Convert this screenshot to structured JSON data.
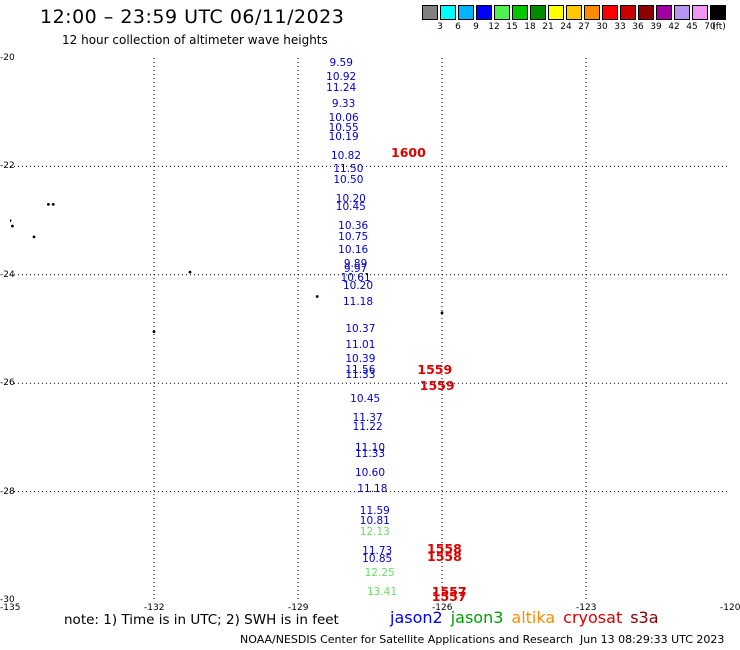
{
  "title": "12:00 – 23:59 UTC 06/11/2023",
  "subtitle": "12 hour collection of altimeter wave heights",
  "legend": {
    "colors": [
      "#808080",
      "#00ffff",
      "#00b4ff",
      "#0000ff",
      "#50f050",
      "#00c800",
      "#008c00",
      "#ffff00",
      "#ffc800",
      "#ff8c00",
      "#ff0000",
      "#c80000",
      "#8c0000",
      "#a000a0",
      "#b496f0",
      "#f096f0",
      "#000000"
    ],
    "labels": [
      "3",
      "6",
      "9",
      "12",
      "15",
      "18",
      "21",
      "24",
      "27",
      "30",
      "33",
      "36",
      "39",
      "42",
      "45",
      "70",
      "(ft)"
    ]
  },
  "axes": {
    "x_ticks": [
      {
        "v": -135,
        "t": "-135"
      },
      {
        "v": -132,
        "t": "-132"
      },
      {
        "v": -129,
        "t": "-129"
      },
      {
        "v": -126,
        "t": "-126"
      },
      {
        "v": -123,
        "t": "-123"
      },
      {
        "v": -120,
        "t": "-120"
      }
    ],
    "y_ticks": [
      {
        "v": -20,
        "t": "-20"
      },
      {
        "v": -22,
        "t": "-22"
      },
      {
        "v": -24,
        "t": "-24"
      },
      {
        "v": -26,
        "t": "-26"
      },
      {
        "v": -28,
        "t": "-28"
      },
      {
        "v": -30,
        "t": "-30"
      }
    ],
    "lon_range": [
      -135,
      -120
    ],
    "lat_range": [
      -20,
      -30
    ]
  },
  "observations": [
    {
      "t": "9.59",
      "lon": -128.1,
      "lat": -20.1,
      "c": "#0000cc"
    },
    {
      "t": "10.92",
      "lon": -128.1,
      "lat": -20.35,
      "c": "#0000cc"
    },
    {
      "t": "11.24",
      "lon": -128.1,
      "lat": -20.55,
      "c": "#0000cc"
    },
    {
      "t": "9.33",
      "lon": -128.05,
      "lat": -20.85,
      "c": "#0000cc"
    },
    {
      "t": "10.06",
      "lon": -128.05,
      "lat": -21.1,
      "c": "#0000cc"
    },
    {
      "t": "10.55",
      "lon": -128.05,
      "lat": -21.3,
      "c": "#0000cc"
    },
    {
      "t": "10.19",
      "lon": -128.05,
      "lat": -21.45,
      "c": "#0000cc"
    },
    {
      "t": "10.82",
      "lon": -128.0,
      "lat": -21.8,
      "c": "#0000cc"
    },
    {
      "t": "11.50",
      "lon": -127.95,
      "lat": -22.05,
      "c": "#0000cc"
    },
    {
      "t": "10.50",
      "lon": -127.95,
      "lat": -22.25,
      "c": "#0000cc"
    },
    {
      "t": "10.20",
      "lon": -127.9,
      "lat": -22.6,
      "c": "#0000cc"
    },
    {
      "t": "10.45",
      "lon": -127.9,
      "lat": -22.75,
      "c": "#0000cc"
    },
    {
      "t": "10.36",
      "lon": -127.85,
      "lat": -23.1,
      "c": "#0000cc"
    },
    {
      "t": "10.75",
      "lon": -127.85,
      "lat": -23.3,
      "c": "#0000cc"
    },
    {
      "t": "10.16",
      "lon": -127.85,
      "lat": -23.55,
      "c": "#0000cc"
    },
    {
      "t": "9.89",
      "lon": -127.8,
      "lat": -23.8,
      "c": "#0000cc"
    },
    {
      "t": "9.97",
      "lon": -127.8,
      "lat": -23.9,
      "c": "#0000cc"
    },
    {
      "t": "10.61",
      "lon": -127.8,
      "lat": -24.05,
      "c": "#0000cc"
    },
    {
      "t": "10.20",
      "lon": -127.75,
      "lat": -24.2,
      "c": "#0000cc"
    },
    {
      "t": "11.18",
      "lon": -127.75,
      "lat": -24.5,
      "c": "#0000cc"
    },
    {
      "t": "10.37",
      "lon": -127.7,
      "lat": -25.0,
      "c": "#0000cc"
    },
    {
      "t": "11.01",
      "lon": -127.7,
      "lat": -25.3,
      "c": "#0000cc"
    },
    {
      "t": "10.39",
      "lon": -127.7,
      "lat": -25.55,
      "c": "#0000cc"
    },
    {
      "t": "11.56",
      "lon": -127.7,
      "lat": -25.75,
      "c": "#0000cc"
    },
    {
      "t": "11.33",
      "lon": -127.7,
      "lat": -25.85,
      "c": "#0000cc"
    },
    {
      "t": "10.45",
      "lon": -127.6,
      "lat": -26.3,
      "c": "#0000cc"
    },
    {
      "t": "11.37",
      "lon": -127.55,
      "lat": -26.65,
      "c": "#0000cc"
    },
    {
      "t": "11.22",
      "lon": -127.55,
      "lat": -26.8,
      "c": "#0000cc"
    },
    {
      "t": "11.10",
      "lon": -127.5,
      "lat": -27.2,
      "c": "#0000cc"
    },
    {
      "t": "11.33",
      "lon": -127.5,
      "lat": -27.3,
      "c": "#0000cc"
    },
    {
      "t": "10.60",
      "lon": -127.5,
      "lat": -27.65,
      "c": "#0000cc"
    },
    {
      "t": "11.18",
      "lon": -127.45,
      "lat": -27.95,
      "c": "#0000cc"
    },
    {
      "t": "11.59",
      "lon": -127.4,
      "lat": -28.35,
      "c": "#0000cc"
    },
    {
      "t": "10.81",
      "lon": -127.4,
      "lat": -28.55,
      "c": "#0000cc"
    },
    {
      "t": "12.13",
      "lon": -127.4,
      "lat": -28.75,
      "c": "#66e066"
    },
    {
      "t": "11.73",
      "lon": -127.35,
      "lat": -29.1,
      "c": "#0000cc"
    },
    {
      "t": "10.85",
      "lon": -127.35,
      "lat": -29.25,
      "c": "#0000cc"
    },
    {
      "t": "12.25",
      "lon": -127.3,
      "lat": -29.5,
      "c": "#66e066"
    },
    {
      "t": "13.41",
      "lon": -127.25,
      "lat": -29.85,
      "c": "#66e066"
    }
  ],
  "passes": [
    {
      "t": "1600",
      "lon": -126.7,
      "lat": -21.75,
      "c": "#dd0000"
    },
    {
      "t": "1559",
      "lon": -126.15,
      "lat": -25.75,
      "c": "#dd0000"
    },
    {
      "t": "1559",
      "lon": -126.1,
      "lat": -26.05,
      "c": "#dd0000"
    },
    {
      "t": "1558",
      "lon": -125.95,
      "lat": -29.05,
      "c": "#dd0000"
    },
    {
      "t": "1558",
      "lon": -125.95,
      "lat": -29.2,
      "c": "#dd0000"
    },
    {
      "t": "1557",
      "lon": -125.85,
      "lat": -29.85,
      "c": "#dd0000"
    },
    {
      "t": "1557",
      "lon": -125.85,
      "lat": -29.95,
      "c": "#dd0000"
    }
  ],
  "islands": [
    {
      "lon": -134.2,
      "lat": -22.7
    },
    {
      "lon": -134.1,
      "lat": -22.7
    },
    {
      "lon": -135.0,
      "lat": -23.0
    },
    {
      "lon": -134.95,
      "lat": -23.1
    },
    {
      "lon": -134.5,
      "lat": -23.3
    },
    {
      "lon": -131.25,
      "lat": -23.95
    },
    {
      "lon": -132.0,
      "lat": -25.05
    },
    {
      "lon": -128.6,
      "lat": -24.4
    },
    {
      "lon": -126.0,
      "lat": -24.7
    }
  ],
  "note": "note: 1) Time is in UTC; 2) SWH is in feet",
  "satellites": [
    {
      "name": "jason2",
      "color": "#0000ff"
    },
    {
      "name": "jason3",
      "color": "#00a000"
    },
    {
      "name": "altika",
      "color": "#ff8c00"
    },
    {
      "name": "cryosat",
      "color": "#dd0000"
    },
    {
      "name": "s3a",
      "color": "#800000"
    }
  ],
  "footer": "NOAA/NESDIS Center for Satellite Applications and Research",
  "timestamp": "Jun 13 08:29:33 UTC 2023"
}
